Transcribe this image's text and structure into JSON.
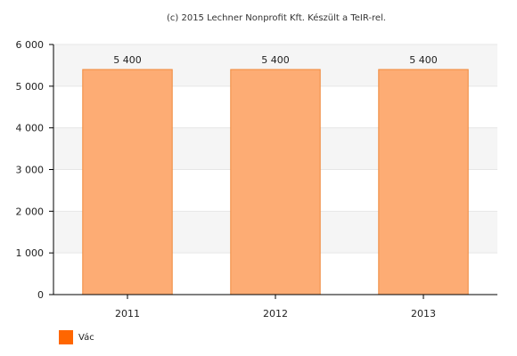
{
  "credit": "(c) 2015 Lechner Nonprofit Kft. Készült a TeIR-rel.",
  "colors": {
    "bar_fill": "#fdac74",
    "bar_stroke": "#f08a3c",
    "legend_swatch": "#ff6600",
    "band": "#f5f5f5",
    "grid": "#e6e6e6",
    "axis": "#000000"
  },
  "chart_data": {
    "type": "bar",
    "categories": [
      "2011",
      "2012",
      "2013"
    ],
    "series": [
      {
        "name": "Vác",
        "values": [
          5400,
          5400,
          5400
        ]
      }
    ],
    "data_labels": [
      "5 400",
      "5 400",
      "5 400"
    ],
    "ylim": [
      0,
      6000
    ],
    "yticks": [
      0,
      1000,
      2000,
      3000,
      4000,
      5000,
      6000
    ],
    "ytick_labels": [
      "0",
      "1 000",
      "2 000",
      "3 000",
      "4 000",
      "5 000",
      "6 000"
    ],
    "xlabel": "",
    "ylabel": "",
    "grid": true,
    "alternating_bands": true,
    "legend_position": "bottom-left"
  }
}
